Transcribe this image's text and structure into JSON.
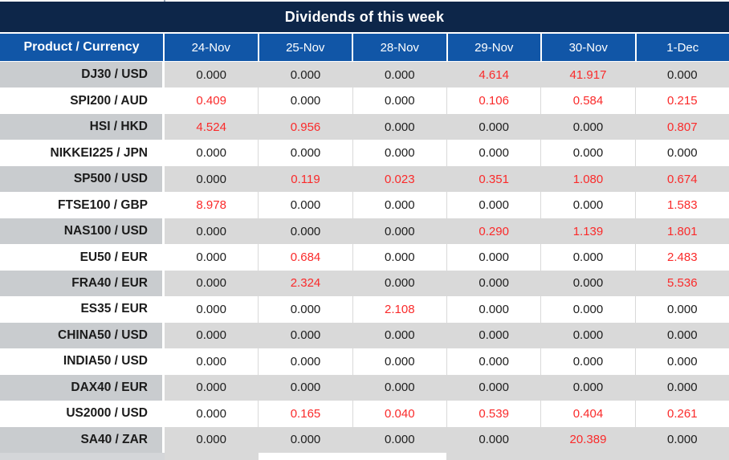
{
  "chart_data": {
    "type": "table",
    "title": "Dividends of this week",
    "row_header_label": "Product / Currency",
    "columns": [
      "24-Nov",
      "25-Nov",
      "28-Nov",
      "29-Nov",
      "30-Nov",
      "1-Dec"
    ],
    "rows": [
      {
        "product": "DJ30 / USD",
        "values": [
          "0.000",
          "0.000",
          "0.000",
          "4.614",
          "41.917",
          "0.000"
        ]
      },
      {
        "product": "SPI200 / AUD",
        "values": [
          "0.409",
          "0.000",
          "0.000",
          "0.106",
          "0.584",
          "0.215"
        ]
      },
      {
        "product": "HSI / HKD",
        "values": [
          "4.524",
          "0.956",
          "0.000",
          "0.000",
          "0.000",
          "0.807"
        ]
      },
      {
        "product": "NIKKEI225 / JPN",
        "values": [
          "0.000",
          "0.000",
          "0.000",
          "0.000",
          "0.000",
          "0.000"
        ]
      },
      {
        "product": "SP500 / USD",
        "values": [
          "0.000",
          "0.119",
          "0.023",
          "0.351",
          "1.080",
          "0.674"
        ]
      },
      {
        "product": "FTSE100 / GBP",
        "values": [
          "8.978",
          "0.000",
          "0.000",
          "0.000",
          "0.000",
          "1.583"
        ]
      },
      {
        "product": "NAS100 / USD",
        "values": [
          "0.000",
          "0.000",
          "0.000",
          "0.290",
          "1.139",
          "1.801"
        ]
      },
      {
        "product": "EU50 / EUR",
        "values": [
          "0.000",
          "0.684",
          "0.000",
          "0.000",
          "0.000",
          "2.483"
        ]
      },
      {
        "product": "FRA40 / EUR",
        "values": [
          "0.000",
          "2.324",
          "0.000",
          "0.000",
          "0.000",
          "5.536"
        ]
      },
      {
        "product": "ES35 / EUR",
        "values": [
          "0.000",
          "0.000",
          "2.108",
          "0.000",
          "0.000",
          "0.000"
        ]
      },
      {
        "product": "CHINA50 / USD",
        "values": [
          "0.000",
          "0.000",
          "0.000",
          "0.000",
          "0.000",
          "0.000"
        ]
      },
      {
        "product": "INDIA50 / USD",
        "values": [
          "0.000",
          "0.000",
          "0.000",
          "0.000",
          "0.000",
          "0.000"
        ]
      },
      {
        "product": "DAX40 / EUR",
        "values": [
          "0.000",
          "0.000",
          "0.000",
          "0.000",
          "0.000",
          "0.000"
        ]
      },
      {
        "product": "US2000 / USD",
        "values": [
          "0.000",
          "0.165",
          "0.040",
          "0.539",
          "0.404",
          "0.261"
        ]
      },
      {
        "product": "SA40 / ZAR",
        "values": [
          "0.000",
          "0.000",
          "0.000",
          "0.000",
          "20.389",
          "0.000"
        ]
      }
    ],
    "style_notes": {
      "value_color_rule": "non-zero values shown in red, zero values in black",
      "zebra": "rows alternate gray/white starting with gray"
    },
    "colors": {
      "title_bg": "#0d2649",
      "header_bg": "#1156a7",
      "header_text": "#ffffff",
      "row_gray_values": "#d9d9d9",
      "row_gray_product": "#c9cccf",
      "value_black": "#1d1d1d",
      "value_red": "#fa2a2a"
    }
  }
}
